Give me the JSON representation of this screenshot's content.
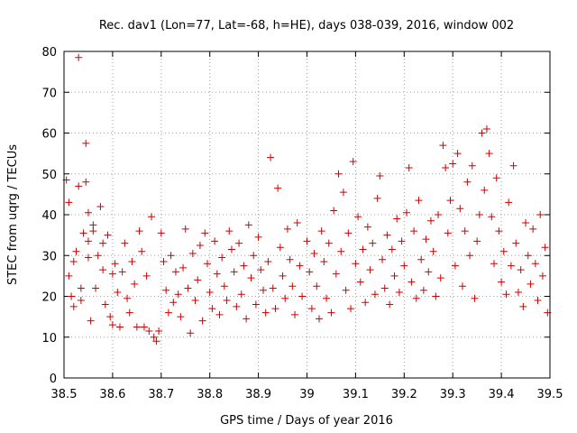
{
  "chart_data": {
    "type": "scatter",
    "title": "Rec. dav1 (Lon=77, Lat=-68, h=HE), days 038-039, 2016, window 002",
    "xlabel": "GPS time / Days of year 2016",
    "ylabel": "STEC from uqrg / TECUs",
    "xlim": [
      38.5,
      39.5
    ],
    "ylim": [
      0,
      80
    ],
    "xticks": [
      "38.5",
      "38.6",
      "38.7",
      "38.8",
      "38.9",
      "39",
      "39.1",
      "39.2",
      "39.3",
      "39.4",
      "39.5"
    ],
    "yticks": [
      "0",
      "10",
      "20",
      "30",
      "40",
      "50",
      "60",
      "70",
      "80"
    ],
    "grid": true,
    "marker": "plus",
    "color": "#cc0000",
    "series": [
      {
        "points": [
          [
            38.505,
            48.5
          ],
          [
            38.51,
            43.0
          ],
          [
            38.51,
            25.0
          ],
          [
            38.515,
            20.0
          ],
          [
            38.52,
            17.5
          ],
          [
            38.52,
            28.5
          ],
          [
            38.525,
            31.0
          ],
          [
            38.53,
            78.5
          ],
          [
            38.53,
            47.0
          ],
          [
            38.535,
            22.0
          ],
          [
            38.535,
            19.0
          ],
          [
            38.54,
            35.5
          ],
          [
            38.545,
            57.5
          ],
          [
            38.545,
            48.0
          ],
          [
            38.55,
            40.5
          ],
          [
            38.55,
            33.5
          ],
          [
            38.55,
            29.5
          ],
          [
            38.555,
            14.0
          ],
          [
            38.56,
            37.5
          ],
          [
            38.56,
            36.0
          ],
          [
            38.565,
            22.0
          ],
          [
            38.57,
            30.0
          ],
          [
            38.575,
            42.0
          ],
          [
            38.58,
            33.0
          ],
          [
            38.58,
            26.5
          ],
          [
            38.585,
            18.0
          ],
          [
            38.59,
            35.0
          ],
          [
            38.595,
            15.0
          ],
          [
            38.6,
            13.0
          ],
          [
            38.6,
            25.5
          ],
          [
            38.605,
            28.0
          ],
          [
            38.61,
            21.0
          ],
          [
            38.615,
            12.5
          ],
          [
            38.62,
            26.0
          ],
          [
            38.625,
            33.0
          ],
          [
            38.63,
            19.5
          ],
          [
            38.635,
            16.0
          ],
          [
            38.64,
            28.5
          ],
          [
            38.645,
            23.0
          ],
          [
            38.65,
            12.5
          ],
          [
            38.655,
            36.0
          ],
          [
            38.66,
            31.0
          ],
          [
            38.665,
            12.5
          ],
          [
            38.67,
            25.0
          ],
          [
            38.675,
            11.5
          ],
          [
            38.68,
            39.5
          ],
          [
            38.685,
            10.0
          ],
          [
            38.69,
            9.0
          ],
          [
            38.695,
            11.5
          ],
          [
            38.7,
            35.5
          ],
          [
            38.705,
            28.5
          ],
          [
            38.71,
            21.5
          ],
          [
            38.715,
            16.0
          ],
          [
            38.72,
            30.0
          ],
          [
            38.725,
            18.5
          ],
          [
            38.73,
            26.0
          ],
          [
            38.735,
            20.5
          ],
          [
            38.74,
            15.0
          ],
          [
            38.745,
            27.0
          ],
          [
            38.75,
            36.5
          ],
          [
            38.755,
            22.0
          ],
          [
            38.76,
            11.0
          ],
          [
            38.765,
            30.5
          ],
          [
            38.77,
            19.0
          ],
          [
            38.775,
            24.0
          ],
          [
            38.78,
            32.5
          ],
          [
            38.785,
            14.0
          ],
          [
            38.79,
            35.5
          ],
          [
            38.795,
            28.0
          ],
          [
            38.8,
            21.0
          ],
          [
            38.805,
            17.0
          ],
          [
            38.81,
            33.5
          ],
          [
            38.815,
            25.5
          ],
          [
            38.82,
            15.5
          ],
          [
            38.825,
            29.5
          ],
          [
            38.83,
            22.5
          ],
          [
            38.835,
            19.0
          ],
          [
            38.84,
            36.0
          ],
          [
            38.845,
            31.5
          ],
          [
            38.85,
            26.0
          ],
          [
            38.855,
            17.5
          ],
          [
            38.86,
            33.0
          ],
          [
            38.865,
            20.5
          ],
          [
            38.87,
            27.5
          ],
          [
            38.875,
            14.5
          ],
          [
            38.88,
            37.5
          ],
          [
            38.885,
            24.5
          ],
          [
            38.89,
            30.0
          ],
          [
            38.895,
            18.0
          ],
          [
            38.9,
            34.5
          ],
          [
            38.905,
            26.5
          ],
          [
            38.91,
            21.5
          ],
          [
            38.915,
            16.0
          ],
          [
            38.92,
            28.5
          ],
          [
            38.925,
            54.0
          ],
          [
            38.93,
            22.0
          ],
          [
            38.935,
            17.0
          ],
          [
            38.94,
            46.5
          ],
          [
            38.945,
            32.0
          ],
          [
            38.95,
            25.0
          ],
          [
            38.955,
            19.5
          ],
          [
            38.96,
            36.5
          ],
          [
            38.965,
            29.0
          ],
          [
            38.97,
            22.5
          ],
          [
            38.975,
            15.5
          ],
          [
            38.98,
            38.0
          ],
          [
            38.985,
            27.5
          ],
          [
            38.99,
            20.0
          ],
          [
            39.0,
            33.5
          ],
          [
            39.005,
            26.0
          ],
          [
            39.01,
            17.0
          ],
          [
            39.015,
            30.5
          ],
          [
            39.02,
            22.5
          ],
          [
            39.025,
            14.5
          ],
          [
            39.03,
            36.0
          ],
          [
            39.035,
            28.5
          ],
          [
            39.04,
            19.5
          ],
          [
            39.045,
            33.0
          ],
          [
            39.05,
            16.0
          ],
          [
            39.055,
            41.0
          ],
          [
            39.06,
            25.5
          ],
          [
            39.065,
            50.0
          ],
          [
            39.07,
            31.0
          ],
          [
            39.075,
            45.5
          ],
          [
            39.08,
            21.5
          ],
          [
            39.085,
            35.5
          ],
          [
            39.09,
            17.0
          ],
          [
            39.095,
            53.0
          ],
          [
            39.1,
            28.0
          ],
          [
            39.105,
            39.5
          ],
          [
            39.11,
            23.5
          ],
          [
            39.115,
            31.5
          ],
          [
            39.12,
            18.5
          ],
          [
            39.125,
            37.0
          ],
          [
            39.13,
            26.5
          ],
          [
            39.135,
            33.0
          ],
          [
            39.14,
            20.5
          ],
          [
            39.145,
            44.0
          ],
          [
            39.15,
            49.5
          ],
          [
            39.155,
            29.0
          ],
          [
            39.16,
            22.0
          ],
          [
            39.165,
            35.0
          ],
          [
            39.17,
            18.0
          ],
          [
            39.175,
            31.5
          ],
          [
            39.18,
            25.0
          ],
          [
            39.185,
            39.0
          ],
          [
            39.19,
            21.0
          ],
          [
            39.195,
            33.5
          ],
          [
            39.2,
            27.5
          ],
          [
            39.205,
            40.5
          ],
          [
            39.21,
            51.5
          ],
          [
            39.215,
            23.5
          ],
          [
            39.22,
            36.0
          ],
          [
            39.225,
            19.5
          ],
          [
            39.23,
            43.5
          ],
          [
            39.235,
            29.0
          ],
          [
            39.24,
            21.5
          ],
          [
            39.245,
            34.0
          ],
          [
            39.25,
            26.0
          ],
          [
            39.255,
            38.5
          ],
          [
            39.26,
            31.0
          ],
          [
            39.265,
            20.0
          ],
          [
            39.27,
            40.0
          ],
          [
            39.275,
            24.5
          ],
          [
            39.28,
            57.0
          ],
          [
            39.285,
            51.5
          ],
          [
            39.29,
            35.5
          ],
          [
            39.295,
            43.5
          ],
          [
            39.3,
            52.5
          ],
          [
            39.305,
            27.5
          ],
          [
            39.31,
            55.0
          ],
          [
            39.315,
            41.5
          ],
          [
            39.32,
            22.5
          ],
          [
            39.325,
            36.0
          ],
          [
            39.33,
            48.0
          ],
          [
            39.335,
            30.0
          ],
          [
            39.34,
            52.0
          ],
          [
            39.345,
            19.5
          ],
          [
            39.35,
            33.5
          ],
          [
            39.355,
            40.0
          ],
          [
            39.36,
            60.0
          ],
          [
            39.365,
            46.0
          ],
          [
            39.37,
            61.0
          ],
          [
            39.375,
            55.0
          ],
          [
            39.38,
            39.5
          ],
          [
            39.385,
            28.0
          ],
          [
            39.39,
            49.0
          ],
          [
            39.395,
            36.0
          ],
          [
            39.4,
            23.5
          ],
          [
            39.405,
            31.0
          ],
          [
            39.41,
            20.5
          ],
          [
            39.415,
            43.0
          ],
          [
            39.42,
            27.5
          ],
          [
            39.425,
            52.0
          ],
          [
            39.43,
            33.0
          ],
          [
            39.435,
            21.0
          ],
          [
            39.44,
            26.5
          ],
          [
            39.445,
            17.5
          ],
          [
            39.45,
            38.0
          ],
          [
            39.455,
            30.0
          ],
          [
            39.46,
            23.0
          ],
          [
            39.465,
            36.5
          ],
          [
            39.47,
            28.0
          ],
          [
            39.475,
            19.0
          ],
          [
            39.48,
            40.0
          ],
          [
            39.485,
            25.0
          ],
          [
            39.49,
            32.0
          ],
          [
            39.495,
            16.0
          ]
        ]
      }
    ]
  }
}
